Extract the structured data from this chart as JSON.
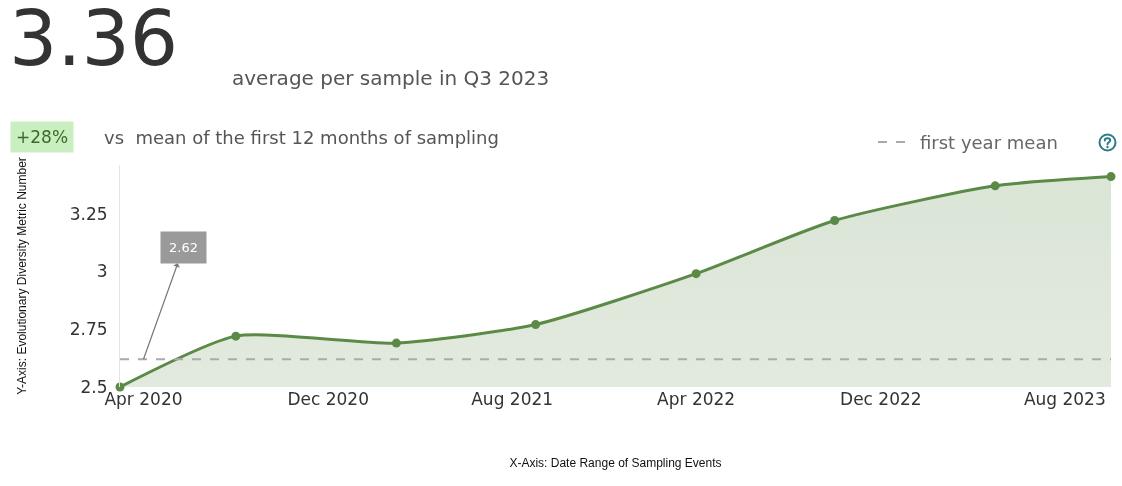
{
  "chart_data": {
    "type": "area",
    "title": "3.36",
    "subtitle": "average per sample in Q3 2023",
    "xlabel": "X-Axis: Date Range of Sampling Events",
    "ylabel": "Y-Axis: Evolutionary Diversity Metric Number",
    "x": [
      "2020-03",
      "2020-08",
      "2021-03",
      "2021-09",
      "2022-04",
      "2022-10",
      "2023-05",
      "2023-10"
    ],
    "series": [
      {
        "color": "#5b8a47",
        "values": [
          2.5,
          2.72,
          2.69,
          2.77,
          2.99,
          3.22,
          3.37,
          3.41
        ]
      }
    ],
    "xlim": [
      "2020-03",
      "2023-10"
    ],
    "xticks": [
      {
        "value": "2020-04",
        "label": "Apr 2020"
      },
      {
        "value": "2020-12",
        "label": "Dec 2020"
      },
      {
        "value": "2021-08",
        "label": "Aug 2021"
      },
      {
        "value": "2022-04",
        "label": "Apr 2022"
      },
      {
        "value": "2022-12",
        "label": "Dec 2022"
      },
      {
        "value": "2023-08",
        "label": "Aug 2023"
      }
    ],
    "ylim": [
      2.5,
      3.46
    ],
    "yticks": [
      2.5,
      2.75,
      3,
      3.25
    ],
    "grid": false,
    "marker": "circle",
    "line_style": "solid",
    "ref_lines": [
      {
        "axis": "y",
        "value": 2.62,
        "label": "first year mean",
        "color": "#aaaaaa",
        "line_style": "dashed"
      }
    ],
    "annotations": [
      "+28%",
      "vs  mean of the first 12 months of sampling",
      {
        "text": "2.62",
        "x": "2020-04",
        "y": 2.62
      }
    ]
  }
}
